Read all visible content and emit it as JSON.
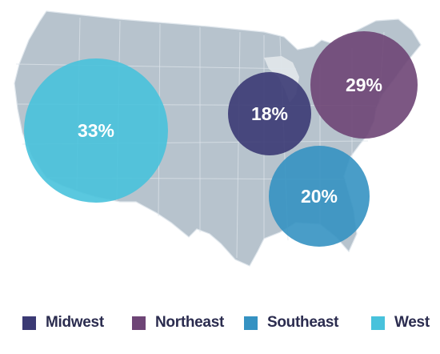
{
  "map": {
    "land_color": "#b7c3cd",
    "border_color": "#dfe6ec"
  },
  "regions": [
    {
      "key": "west",
      "name": "West",
      "value": 33,
      "label": "33%",
      "color": "#48c2dc"
    },
    {
      "key": "midwest",
      "name": "Midwest",
      "value": 18,
      "label": "18%",
      "color": "#3b3a74"
    },
    {
      "key": "northeast",
      "name": "Northeast",
      "value": 29,
      "label": "29%",
      "color": "#6e4576"
    },
    {
      "key": "southeast",
      "name": "Southeast",
      "value": 20,
      "label": "20%",
      "color": "#3592c2"
    }
  ],
  "legend": [
    {
      "name": "Midwest",
      "color": "#3b3a74"
    },
    {
      "name": "Northeast",
      "color": "#6e4576"
    },
    {
      "name": "Southeast",
      "color": "#3592c2"
    },
    {
      "name": "West",
      "color": "#48c2dc"
    }
  ]
}
